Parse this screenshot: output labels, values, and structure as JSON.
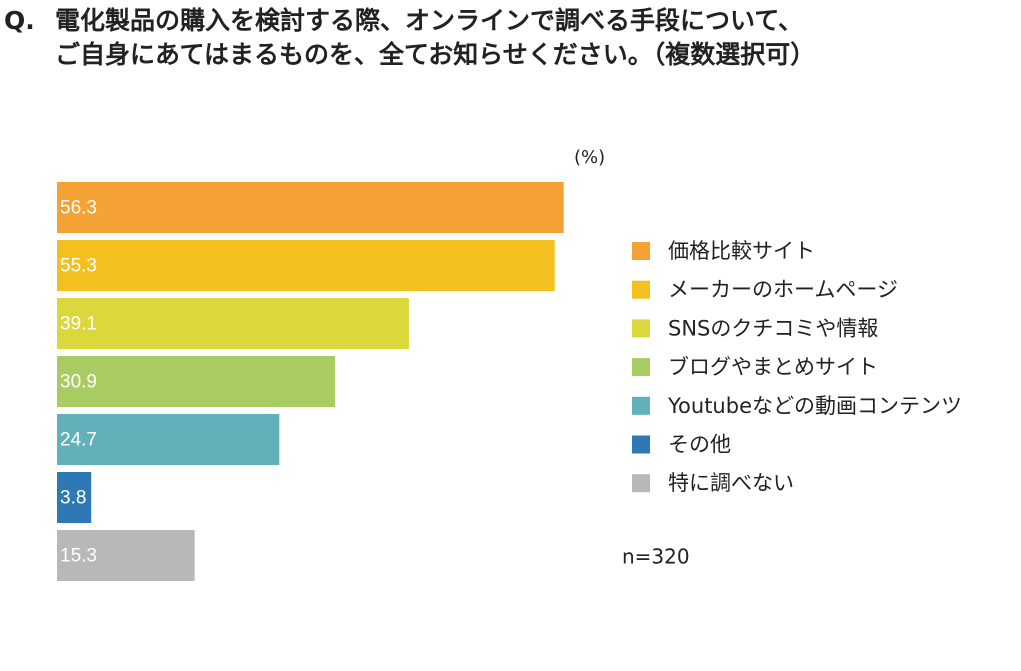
{
  "chart_data": {
    "type": "bar",
    "orientation": "horizontal",
    "question_label": "Q.",
    "title": [
      "電化製品の購入を検討する際、オンラインで調べる手段について、",
      "ご自身にあてはまるものを、全てお知らせください。（複数選択可）"
    ],
    "unit_label": "(%)",
    "note": "n=320",
    "categories": [
      "価格比較サイト",
      "メーカーのホームページ",
      "SNSのクチコミや情報",
      "ブログやまとめサイト",
      "Youtubeなどの動画コンテンツ",
      "その他",
      "特に調べない"
    ],
    "values": [
      56.3,
      55.3,
      39.1,
      30.9,
      24.7,
      3.8,
      15.3
    ],
    "colors": [
      "#f4a233",
      "#f4c020",
      "#dcd73a",
      "#a9cc62",
      "#62b0b9",
      "#2e79b5",
      "#b8b8b8"
    ]
  }
}
